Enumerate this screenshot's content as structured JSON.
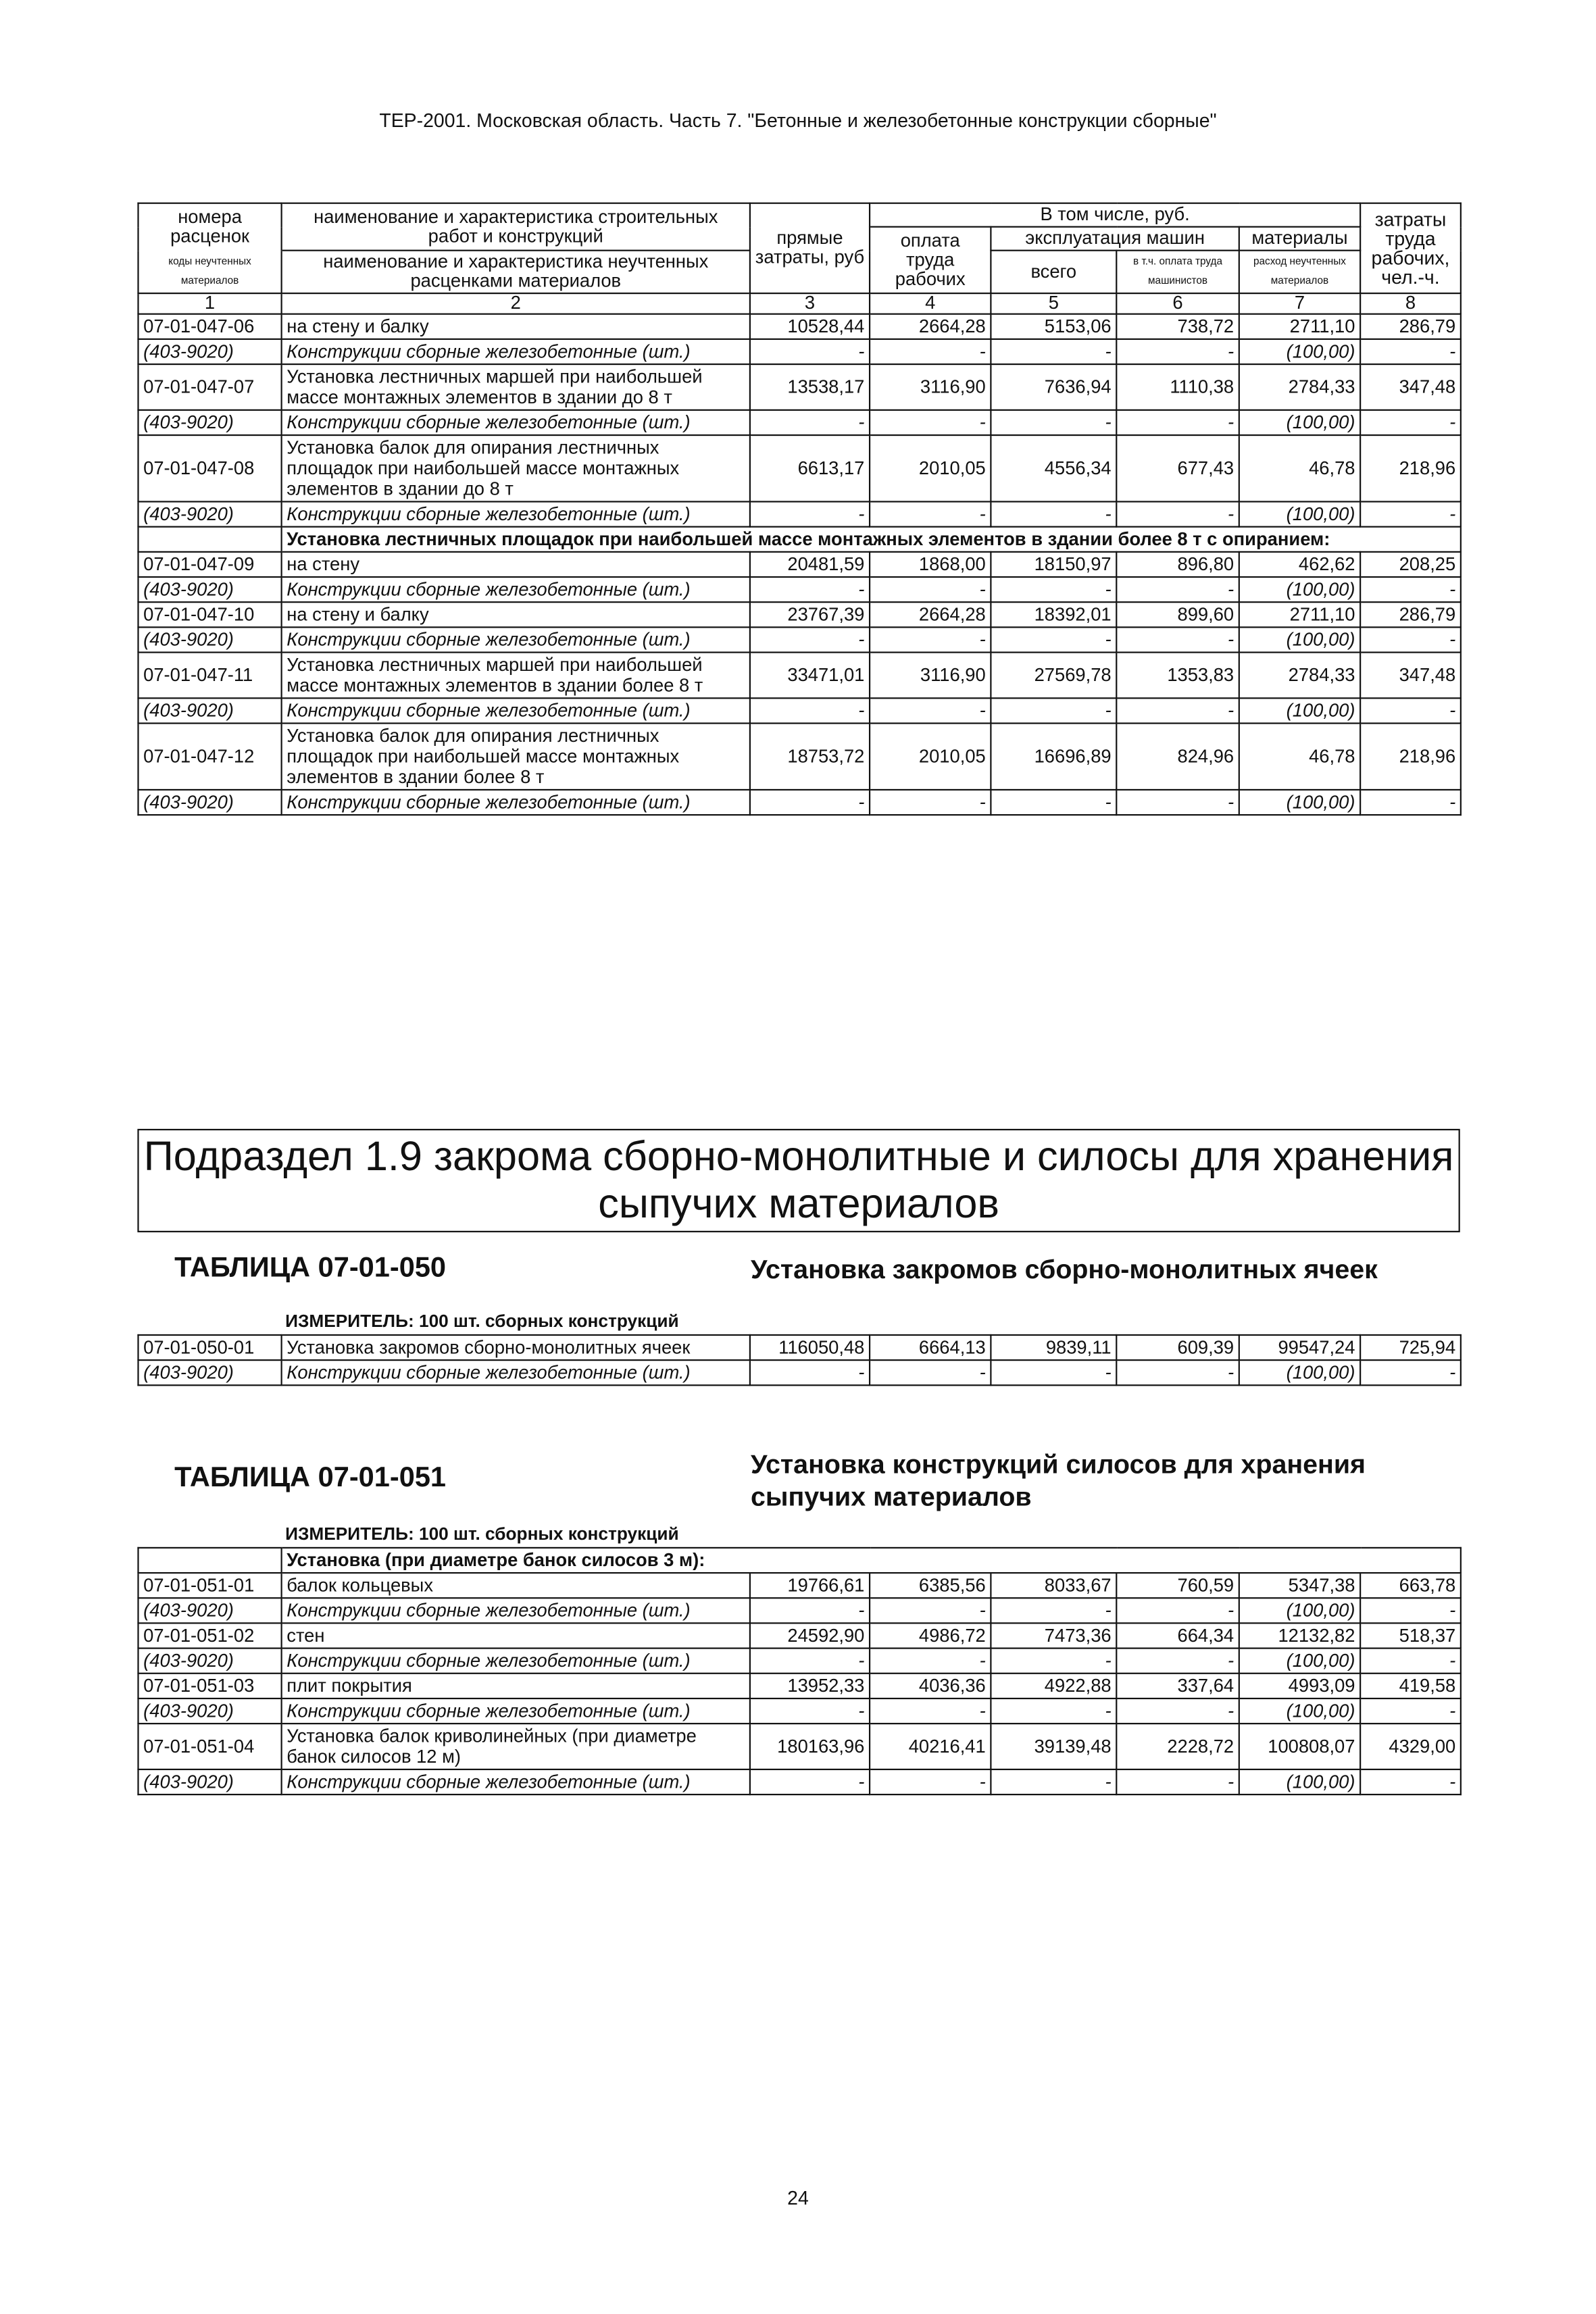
{
  "running_title": "ТЕР-2001. Московская область. Часть 7. \"Бетонные и железобетонные конструкции сборные\"",
  "table_header": {
    "codes": "номера расценок",
    "material_codes": "коды неучтенных материалов",
    "work_name": "наименование и характеристика строительных работ и конструкций",
    "material_name": "наименование и характеристика неучтенных расценками материалов",
    "direct_costs": "прямые затраты, руб",
    "including": "В том числе, руб.",
    "labor_pay": "оплата труда рабочих",
    "machines": "эксплуатация машин",
    "machines_total": "всего",
    "machinist_pay": "в т.ч. оплата труда машинистов",
    "materials": "материалы",
    "material_use": "расход неучтенных материалов",
    "labor_hours": "затраты труда рабочих, чел.-ч.",
    "column_numbers": [
      "1",
      "2",
      "3",
      "4",
      "5",
      "6",
      "7",
      "8"
    ]
  },
  "table_continued": {
    "rows": [
      {
        "code": "07-01-047-06",
        "name": "на стену и балку",
        "values": [
          "10528,44",
          "2664,28",
          "5153,06",
          "738,72",
          "2711,10",
          "286,79"
        ],
        "material": {
          "code": "(403-9020)",
          "name": "Конструкции сборные железобетонные (шт.)",
          "values": [
            "-",
            "-",
            "-",
            "-",
            "(100,00)",
            "-"
          ]
        }
      },
      {
        "code": "07-01-047-07",
        "name": "Установка лестничных маршей при наибольшей массе монтажных элементов в здании до 8 т",
        "values": [
          "13538,17",
          "3116,90",
          "7636,94",
          "1110,38",
          "2784,33",
          "347,48"
        ],
        "material": {
          "code": "(403-9020)",
          "name": "Конструкции сборные железобетонные (шт.)",
          "values": [
            "-",
            "-",
            "-",
            "-",
            "(100,00)",
            "-"
          ]
        }
      },
      {
        "code": "07-01-047-08",
        "name": "Установка балок для опирания лестничных площадок при наибольшей массе монтажных элементов в здании до 8 т",
        "values": [
          "6613,17",
          "2010,05",
          "4556,34",
          "677,43",
          "46,78",
          "218,96"
        ],
        "material": {
          "code": "(403-9020)",
          "name": "Конструкции сборные железобетонные (шт.)",
          "values": [
            "-",
            "-",
            "-",
            "-",
            "(100,00)",
            "-"
          ]
        }
      },
      {
        "heading": "Установка лестничных площадок при наибольшей массе монтажных элементов в здании более 8 т с опиранием:"
      },
      {
        "code": "07-01-047-09",
        "name": "на стену",
        "values": [
          "20481,59",
          "1868,00",
          "18150,97",
          "896,80",
          "462,62",
          "208,25"
        ],
        "material": {
          "code": "(403-9020)",
          "name": "Конструкции сборные железобетонные (шт.)",
          "values": [
            "-",
            "-",
            "-",
            "-",
            "(100,00)",
            "-"
          ]
        }
      },
      {
        "code": "07-01-047-10",
        "name": "на стену и балку",
        "values": [
          "23767,39",
          "2664,28",
          "18392,01",
          "899,60",
          "2711,10",
          "286,79"
        ],
        "material": {
          "code": "(403-9020)",
          "name": "Конструкции сборные железобетонные (шт.)",
          "values": [
            "-",
            "-",
            "-",
            "-",
            "(100,00)",
            "-"
          ]
        }
      },
      {
        "code": "07-01-047-11",
        "name": "Установка лестничных маршей при наибольшей массе монтажных элементов в здании более 8 т",
        "values": [
          "33471,01",
          "3116,90",
          "27569,78",
          "1353,83",
          "2784,33",
          "347,48"
        ],
        "material": {
          "code": "(403-9020)",
          "name": "Конструкции сборные железобетонные (шт.)",
          "values": [
            "-",
            "-",
            "-",
            "-",
            "(100,00)",
            "-"
          ]
        }
      },
      {
        "code": "07-01-047-12",
        "name": "Установка балок для опирания лестничных площадок при наибольшей массе монтажных элементов в здании более 8 т",
        "values": [
          "18753,72",
          "2010,05",
          "16696,89",
          "824,96",
          "46,78",
          "218,96"
        ],
        "material": {
          "code": "(403-9020)",
          "name": "Конструкции сборные железобетонные (шт.)",
          "values": [
            "-",
            "-",
            "-",
            "-",
            "(100,00)",
            "-"
          ]
        }
      }
    ]
  },
  "subsection_title": "Подраздел 1.9 закрома сборно-монолитные и силосы для хранения сыпучих материалов",
  "table_050": {
    "label": "ТАБЛИЦА 07-01-050",
    "title": "Установка закромов сборно-монолитных ячеек",
    "measure": "ИЗМЕРИТЕЛЬ: 100 шт. сборных конструкций",
    "rows": [
      {
        "code": "07-01-050-01",
        "name": "Установка закромов сборно-монолитных ячеек",
        "values": [
          "116050,48",
          "6664,13",
          "9839,11",
          "609,39",
          "99547,24",
          "725,94"
        ],
        "material": {
          "code": "(403-9020)",
          "name": "Конструкции сборные железобетонные (шт.)",
          "values": [
            "-",
            "-",
            "-",
            "-",
            "(100,00)",
            "-"
          ]
        }
      }
    ]
  },
  "table_051": {
    "label": "ТАБЛИЦА 07-01-051",
    "title": "Установка конструкций силосов для хранения сыпучих материалов",
    "measure": "ИЗМЕРИТЕЛЬ: 100 шт. сборных конструкций",
    "rows": [
      {
        "heading": "Установка (при диаметре банок силосов 3 м):"
      },
      {
        "code": "07-01-051-01",
        "name": "балок кольцевых",
        "values": [
          "19766,61",
          "6385,56",
          "8033,67",
          "760,59",
          "5347,38",
          "663,78"
        ],
        "material": {
          "code": "(403-9020)",
          "name": "Конструкции сборные железобетонные (шт.)",
          "values": [
            "-",
            "-",
            "-",
            "-",
            "(100,00)",
            "-"
          ]
        }
      },
      {
        "code": "07-01-051-02",
        "name": "стен",
        "values": [
          "24592,90",
          "4986,72",
          "7473,36",
          "664,34",
          "12132,82",
          "518,37"
        ],
        "material": {
          "code": "(403-9020)",
          "name": "Конструкции сборные железобетонные (шт.)",
          "values": [
            "-",
            "-",
            "-",
            "-",
            "(100,00)",
            "-"
          ]
        }
      },
      {
        "code": "07-01-051-03",
        "name": "плит покрытия",
        "values": [
          "13952,33",
          "4036,36",
          "4922,88",
          "337,64",
          "4993,09",
          "419,58"
        ],
        "material": {
          "code": "(403-9020)",
          "name": "Конструкции сборные железобетонные (шт.)",
          "values": [
            "-",
            "-",
            "-",
            "-",
            "(100,00)",
            "-"
          ]
        }
      },
      {
        "code": "07-01-051-04",
        "name": "Установка балок криволинейных (при диаметре банок силосов 12 м)",
        "values": [
          "180163,96",
          "40216,41",
          "39139,48",
          "2228,72",
          "100808,07",
          "4329,00"
        ],
        "material": {
          "code": "(403-9020)",
          "name": "Конструкции сборные железобетонные (шт.)",
          "values": [
            "-",
            "-",
            "-",
            "-",
            "(100,00)",
            "-"
          ]
        }
      }
    ]
  },
  "page_number": "24"
}
